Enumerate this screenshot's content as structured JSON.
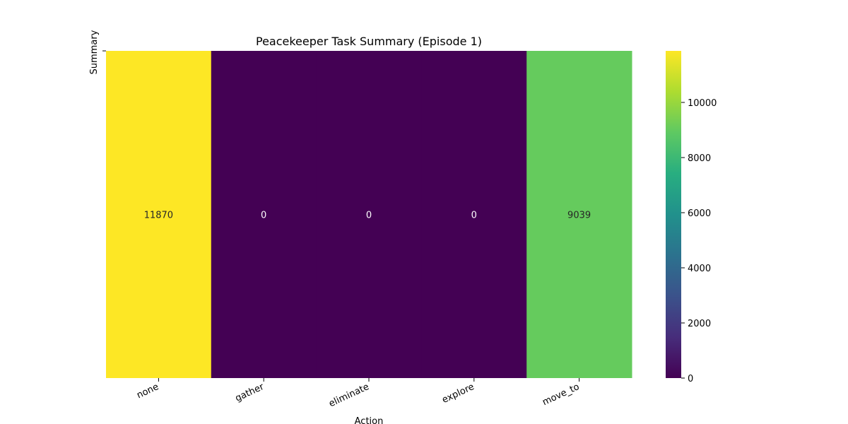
{
  "chart_data": {
    "type": "heatmap",
    "title": "Peacekeeper Task Summary (Episode 1)",
    "xlabel": "Action",
    "ylabel": "Summary",
    "categories": [
      "none",
      "gather",
      "eliminate",
      "explore",
      "move_to"
    ],
    "values": [
      11870,
      0,
      0,
      0,
      9039
    ],
    "colormap": "viridis",
    "colorbar": {
      "range": [
        0,
        11870
      ],
      "ticks": [
        0,
        2000,
        4000,
        6000,
        8000,
        10000
      ],
      "tick_labels": [
        "0",
        "2000",
        "4000",
        "6000",
        "8000",
        "10000"
      ]
    },
    "cell_text_colors": {
      "light": "#ffffff",
      "dark": "#262626"
    },
    "grid": false,
    "legend": "none"
  }
}
